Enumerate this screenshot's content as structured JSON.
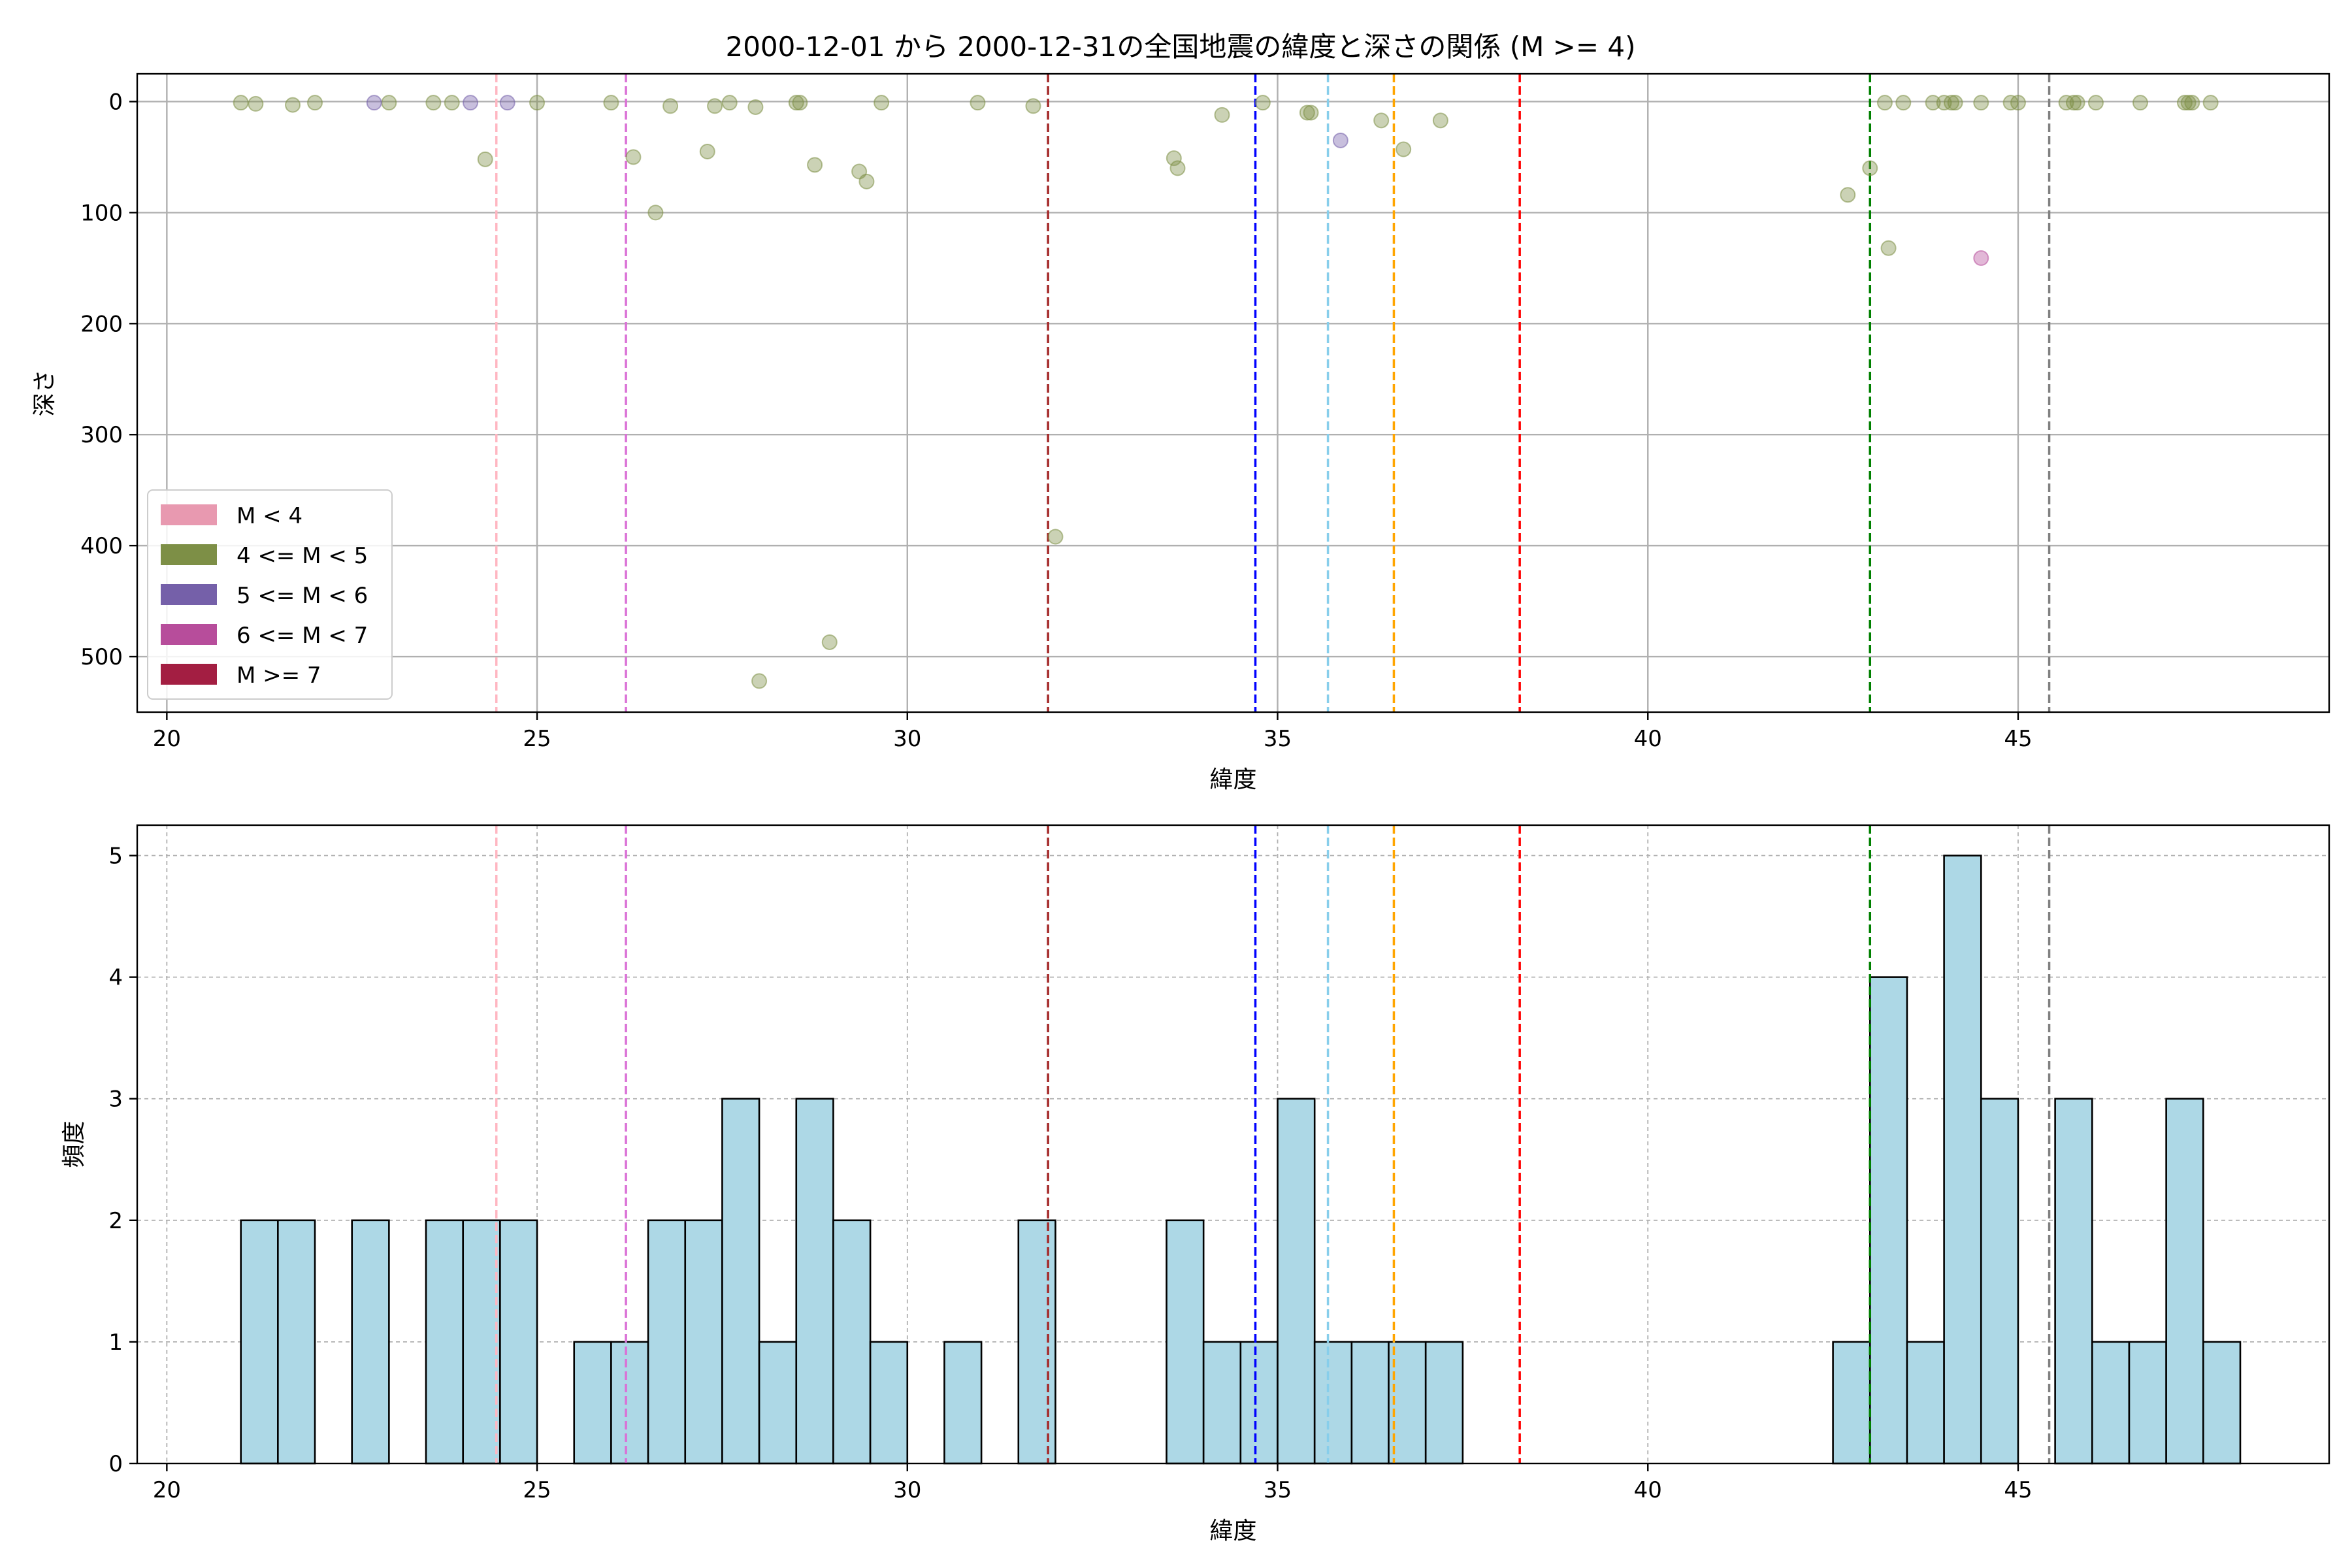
{
  "chart_data": [
    {
      "type": "scatter",
      "title": "2000-12-01 から 2000-12-31の全国地震の緯度と深さの関係 (M >= 4)",
      "xlabel": "緯度",
      "ylabel": "深さ",
      "xlim": [
        19.6,
        49.2
      ],
      "ylim": [
        550,
        -25
      ],
      "y_inverted": true,
      "xticks": [
        20,
        25,
        30,
        35,
        40,
        45
      ],
      "yticks": [
        0,
        100,
        200,
        300,
        400,
        500
      ],
      "grid": true,
      "legend_position": "lower-left",
      "legend": [
        {
          "label": "M < 4",
          "color": "#e899b0"
        },
        {
          "label": "4 <= M < 5",
          "color": "#7d8f46"
        },
        {
          "label": "5 <= M < 6",
          "color": "#7560a9"
        },
        {
          "label": "6 <= M < 7",
          "color": "#b74d9b"
        },
        {
          "label": "M >= 7",
          "color": "#a31e42"
        }
      ],
      "vertical_lines": [
        {
          "x": 24.45,
          "color": "#ffb6c1"
        },
        {
          "x": 26.2,
          "color": "#da70d6"
        },
        {
          "x": 31.9,
          "color": "#a52a2a"
        },
        {
          "x": 34.7,
          "color": "#0000ff"
        },
        {
          "x": 35.68,
          "color": "#87ceeb"
        },
        {
          "x": 36.57,
          "color": "#ffa500"
        },
        {
          "x": 38.27,
          "color": "#ff0000"
        },
        {
          "x": 43.0,
          "color": "#008000"
        },
        {
          "x": 45.42,
          "color": "#808080"
        }
      ],
      "series": [
        {
          "color": "#7d8f46",
          "points": [
            [
              21.0,
              1
            ],
            [
              21.2,
              2
            ],
            [
              21.7,
              3
            ],
            [
              22.0,
              1
            ],
            [
              23.0,
              1
            ],
            [
              23.6,
              1
            ],
            [
              23.85,
              1
            ],
            [
              24.3,
              52
            ],
            [
              25.0,
              1
            ],
            [
              26.0,
              1
            ],
            [
              26.3,
              50
            ],
            [
              26.6,
              100
            ],
            [
              26.8,
              4
            ],
            [
              27.3,
              45
            ],
            [
              27.4,
              4
            ],
            [
              27.6,
              1
            ],
            [
              27.95,
              5
            ],
            [
              28.0,
              522
            ],
            [
              28.5,
              1
            ],
            [
              28.55,
              1
            ],
            [
              28.75,
              57
            ],
            [
              28.95,
              487
            ],
            [
              29.35,
              63
            ],
            [
              29.45,
              72
            ],
            [
              29.65,
              1
            ],
            [
              30.95,
              1
            ],
            [
              31.7,
              4
            ],
            [
              32.0,
              392
            ],
            [
              33.6,
              51
            ],
            [
              33.65,
              60
            ],
            [
              34.25,
              12
            ],
            [
              34.8,
              1
            ],
            [
              35.4,
              10
            ],
            [
              35.45,
              10
            ],
            [
              36.4,
              17
            ],
            [
              36.7,
              43
            ],
            [
              37.2,
              17
            ],
            [
              42.7,
              84
            ],
            [
              43.0,
              60
            ],
            [
              43.2,
              1
            ],
            [
              43.25,
              132
            ],
            [
              43.45,
              1
            ],
            [
              43.85,
              1
            ],
            [
              44.0,
              1
            ],
            [
              44.1,
              1
            ],
            [
              44.15,
              1
            ],
            [
              44.5,
              1
            ],
            [
              44.9,
              1
            ],
            [
              45.0,
              1
            ],
            [
              45.65,
              1
            ],
            [
              45.75,
              1
            ],
            [
              45.8,
              1
            ],
            [
              46.05,
              1
            ],
            [
              46.65,
              1
            ],
            [
              47.25,
              1
            ],
            [
              47.3,
              1
            ],
            [
              47.35,
              1
            ],
            [
              47.6,
              1
            ]
          ]
        },
        {
          "color": "#7560a9",
          "points": [
            [
              22.8,
              1
            ],
            [
              24.1,
              1
            ],
            [
              24.6,
              1
            ],
            [
              35.85,
              35
            ]
          ]
        },
        {
          "color": "#b74d9b",
          "points": [
            [
              44.5,
              141
            ]
          ]
        }
      ]
    },
    {
      "type": "bar",
      "subtype": "histogram",
      "xlabel": "緯度",
      "ylabel": "頻度",
      "xlim": [
        19.6,
        49.2
      ],
      "ylim": [
        0,
        5.25
      ],
      "xticks": [
        20,
        25,
        30,
        35,
        40,
        45
      ],
      "yticks": [
        0,
        1,
        2,
        3,
        4,
        5
      ],
      "grid": true,
      "bar_color": "#add8e6",
      "vertical_lines": [
        {
          "x": 24.45,
          "color": "#ffb6c1"
        },
        {
          "x": 26.2,
          "color": "#da70d6"
        },
        {
          "x": 31.9,
          "color": "#a52a2a"
        },
        {
          "x": 34.7,
          "color": "#0000ff"
        },
        {
          "x": 35.68,
          "color": "#87ceeb"
        },
        {
          "x": 36.57,
          "color": "#ffa500"
        },
        {
          "x": 38.27,
          "color": "#ff0000"
        },
        {
          "x": 43.0,
          "color": "#008000"
        },
        {
          "x": 45.42,
          "color": "#808080"
        }
      ],
      "bins": [
        {
          "x0": 21.0,
          "x1": 21.5,
          "count": 2
        },
        {
          "x0": 21.5,
          "x1": 22.0,
          "count": 2
        },
        {
          "x0": 22.5,
          "x1": 23.0,
          "count": 2
        },
        {
          "x0": 23.5,
          "x1": 24.0,
          "count": 2
        },
        {
          "x0": 24.0,
          "x1": 24.5,
          "count": 2
        },
        {
          "x0": 24.5,
          "x1": 25.0,
          "count": 2
        },
        {
          "x0": 25.5,
          "x1": 26.0,
          "count": 1
        },
        {
          "x0": 26.0,
          "x1": 26.5,
          "count": 1
        },
        {
          "x0": 26.5,
          "x1": 27.0,
          "count": 2
        },
        {
          "x0": 27.0,
          "x1": 27.5,
          "count": 2
        },
        {
          "x0": 27.5,
          "x1": 28.0,
          "count": 3
        },
        {
          "x0": 28.0,
          "x1": 28.5,
          "count": 1
        },
        {
          "x0": 28.5,
          "x1": 29.0,
          "count": 3
        },
        {
          "x0": 29.0,
          "x1": 29.5,
          "count": 2
        },
        {
          "x0": 29.5,
          "x1": 30.0,
          "count": 1
        },
        {
          "x0": 30.5,
          "x1": 31.0,
          "count": 1
        },
        {
          "x0": 31.5,
          "x1": 32.0,
          "count": 2
        },
        {
          "x0": 33.5,
          "x1": 34.0,
          "count": 2
        },
        {
          "x0": 34.0,
          "x1": 34.5,
          "count": 1
        },
        {
          "x0": 34.5,
          "x1": 35.0,
          "count": 1
        },
        {
          "x0": 35.0,
          "x1": 35.5,
          "count": 3
        },
        {
          "x0": 35.5,
          "x1": 36.0,
          "count": 1
        },
        {
          "x0": 36.0,
          "x1": 36.5,
          "count": 1
        },
        {
          "x0": 36.5,
          "x1": 37.0,
          "count": 1
        },
        {
          "x0": 37.0,
          "x1": 37.5,
          "count": 1
        },
        {
          "x0": 42.5,
          "x1": 43.0,
          "count": 1
        },
        {
          "x0": 43.0,
          "x1": 43.5,
          "count": 4
        },
        {
          "x0": 43.5,
          "x1": 44.0,
          "count": 1
        },
        {
          "x0": 44.0,
          "x1": 44.5,
          "count": 5
        },
        {
          "x0": 44.5,
          "x1": 45.0,
          "count": 3
        },
        {
          "x0": 45.5,
          "x1": 46.0,
          "count": 3
        },
        {
          "x0": 46.0,
          "x1": 46.5,
          "count": 1
        },
        {
          "x0": 46.5,
          "x1": 47.0,
          "count": 1
        },
        {
          "x0": 47.0,
          "x1": 47.5,
          "count": 3
        },
        {
          "x0": 47.5,
          "x1": 48.0,
          "count": 1
        }
      ]
    }
  ]
}
